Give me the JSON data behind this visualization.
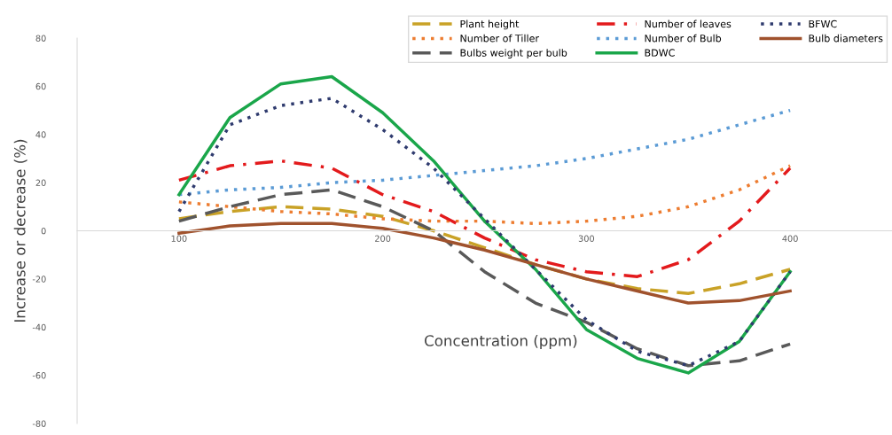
{
  "chart_data": {
    "type": "line",
    "xlabel": "Concentration (ppm)",
    "ylabel": "Increase or decrease (%)",
    "x": [
      100,
      125,
      150,
      175,
      200,
      225,
      250,
      275,
      300,
      325,
      350,
      375,
      400
    ],
    "xlim": [
      50,
      450
    ],
    "xticks": [
      100,
      200,
      300,
      400
    ],
    "ylim": [
      -80,
      80
    ],
    "yticks": [
      -80,
      -60,
      -40,
      -20,
      0,
      20,
      40,
      60,
      80
    ],
    "grid": false,
    "legend": "top right",
    "series": [
      {
        "name": "Plant height",
        "color": "#c9a227",
        "line_style": "dashed",
        "values": [
          5,
          8,
          10,
          9,
          6,
          0,
          -7,
          -14,
          -20,
          -24,
          -26,
          -22,
          -16
        ]
      },
      {
        "name": "Number of Tiller",
        "color": "#ed7d31",
        "line_style": "dotted",
        "values": [
          12,
          10,
          8,
          7,
          5,
          4,
          4,
          3,
          4,
          6,
          10,
          17,
          27
        ]
      },
      {
        "name": "Bulbs weight per bulb",
        "color": "#595959",
        "line_style": "dashed",
        "values": [
          4,
          10,
          15,
          17,
          10,
          0,
          -17,
          -30,
          -38,
          -49,
          -56,
          -54,
          -47
        ]
      },
      {
        "name": "Number of leaves",
        "color": "#e31a1c",
        "line_style": "dashdot",
        "values": [
          21,
          27,
          29,
          26,
          15,
          8,
          -3,
          -12,
          -17,
          -19,
          -12,
          4,
          26
        ]
      },
      {
        "name": "Number of Bulb",
        "color": "#5b9bd5",
        "line_style": "dotted",
        "values": [
          15,
          17,
          18,
          20,
          21,
          23,
          25,
          27,
          30,
          34,
          38,
          44,
          50
        ]
      },
      {
        "name": "BDWC",
        "color": "#1aa64a",
        "line_style": "solid",
        "values": [
          15,
          47,
          61,
          64,
          49,
          29,
          4,
          -16,
          -41,
          -53,
          -59,
          -46,
          -17
        ]
      },
      {
        "name": "BFWC",
        "color": "#2f3b6e",
        "line_style": "dotted",
        "values": [
          8,
          44,
          52,
          55,
          42,
          26,
          5,
          -16,
          -37,
          -50,
          -56,
          -46,
          -17
        ]
      },
      {
        "name": "Bulb diameters",
        "color": "#a0522d",
        "line_style": "solid",
        "values": [
          -1,
          2,
          3,
          3,
          1,
          -3,
          -8,
          -14,
          -20,
          -25,
          -30,
          -29,
          -25
        ]
      }
    ]
  }
}
